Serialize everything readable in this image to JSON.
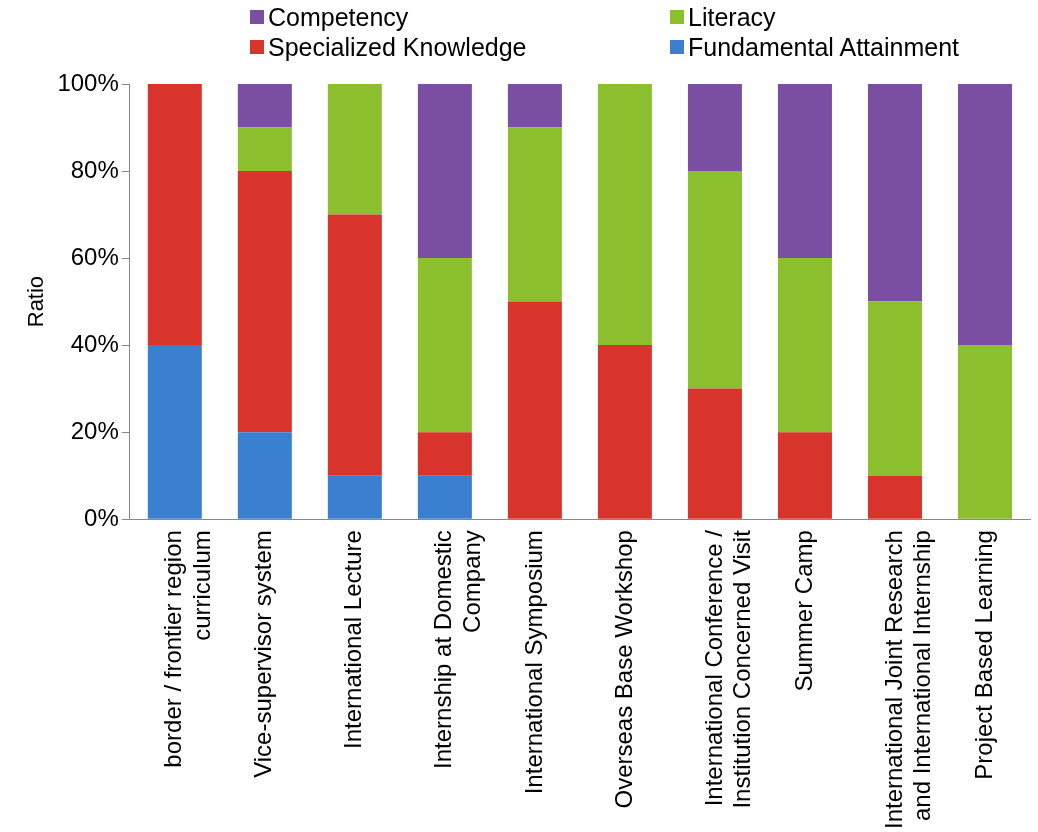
{
  "chart_data": {
    "type": "bar",
    "stacked": true,
    "ylabel": "Ratio",
    "legend": "top",
    "grid": false,
    "categories": [
      "border / frontier region\ncurriculum",
      "Vice-supervisor system",
      "International Lecture",
      "Internship at Domestic\nCompany",
      "International Symposium",
      "Overseas Base Workshop",
      "International Conference /\nInstitution Concerned Visit",
      "Summer Camp",
      "International Joint Research\nand International Internship",
      "Project Based Learning"
    ],
    "ylim": [
      0,
      100
    ],
    "yticks": [
      {
        "value": 0,
        "label": "0%"
      },
      {
        "value": 20,
        "label": "20%"
      },
      {
        "value": 40,
        "label": "40%"
      },
      {
        "value": 60,
        "label": "60%"
      },
      {
        "value": 80,
        "label": "80%"
      },
      {
        "value": 100,
        "label": "100%"
      }
    ],
    "series": [
      {
        "name": "Fundamental Attainment",
        "color": "#3a7fd0",
        "values": [
          40,
          20,
          10,
          10,
          0,
          0,
          0,
          0,
          0,
          0
        ]
      },
      {
        "name": "Specialized Knowledge",
        "color": "#d9342b",
        "values": [
          60,
          60,
          60,
          10,
          50,
          40,
          30,
          20,
          10,
          0
        ]
      },
      {
        "name": "Literacy",
        "color": "#8cbf2e",
        "values": [
          0,
          10,
          30,
          40,
          40,
          60,
          50,
          40,
          40,
          40
        ]
      },
      {
        "name": "Competency",
        "color": "#7a4fa3",
        "values": [
          0,
          10,
          0,
          40,
          10,
          0,
          20,
          40,
          50,
          60
        ]
      }
    ]
  }
}
